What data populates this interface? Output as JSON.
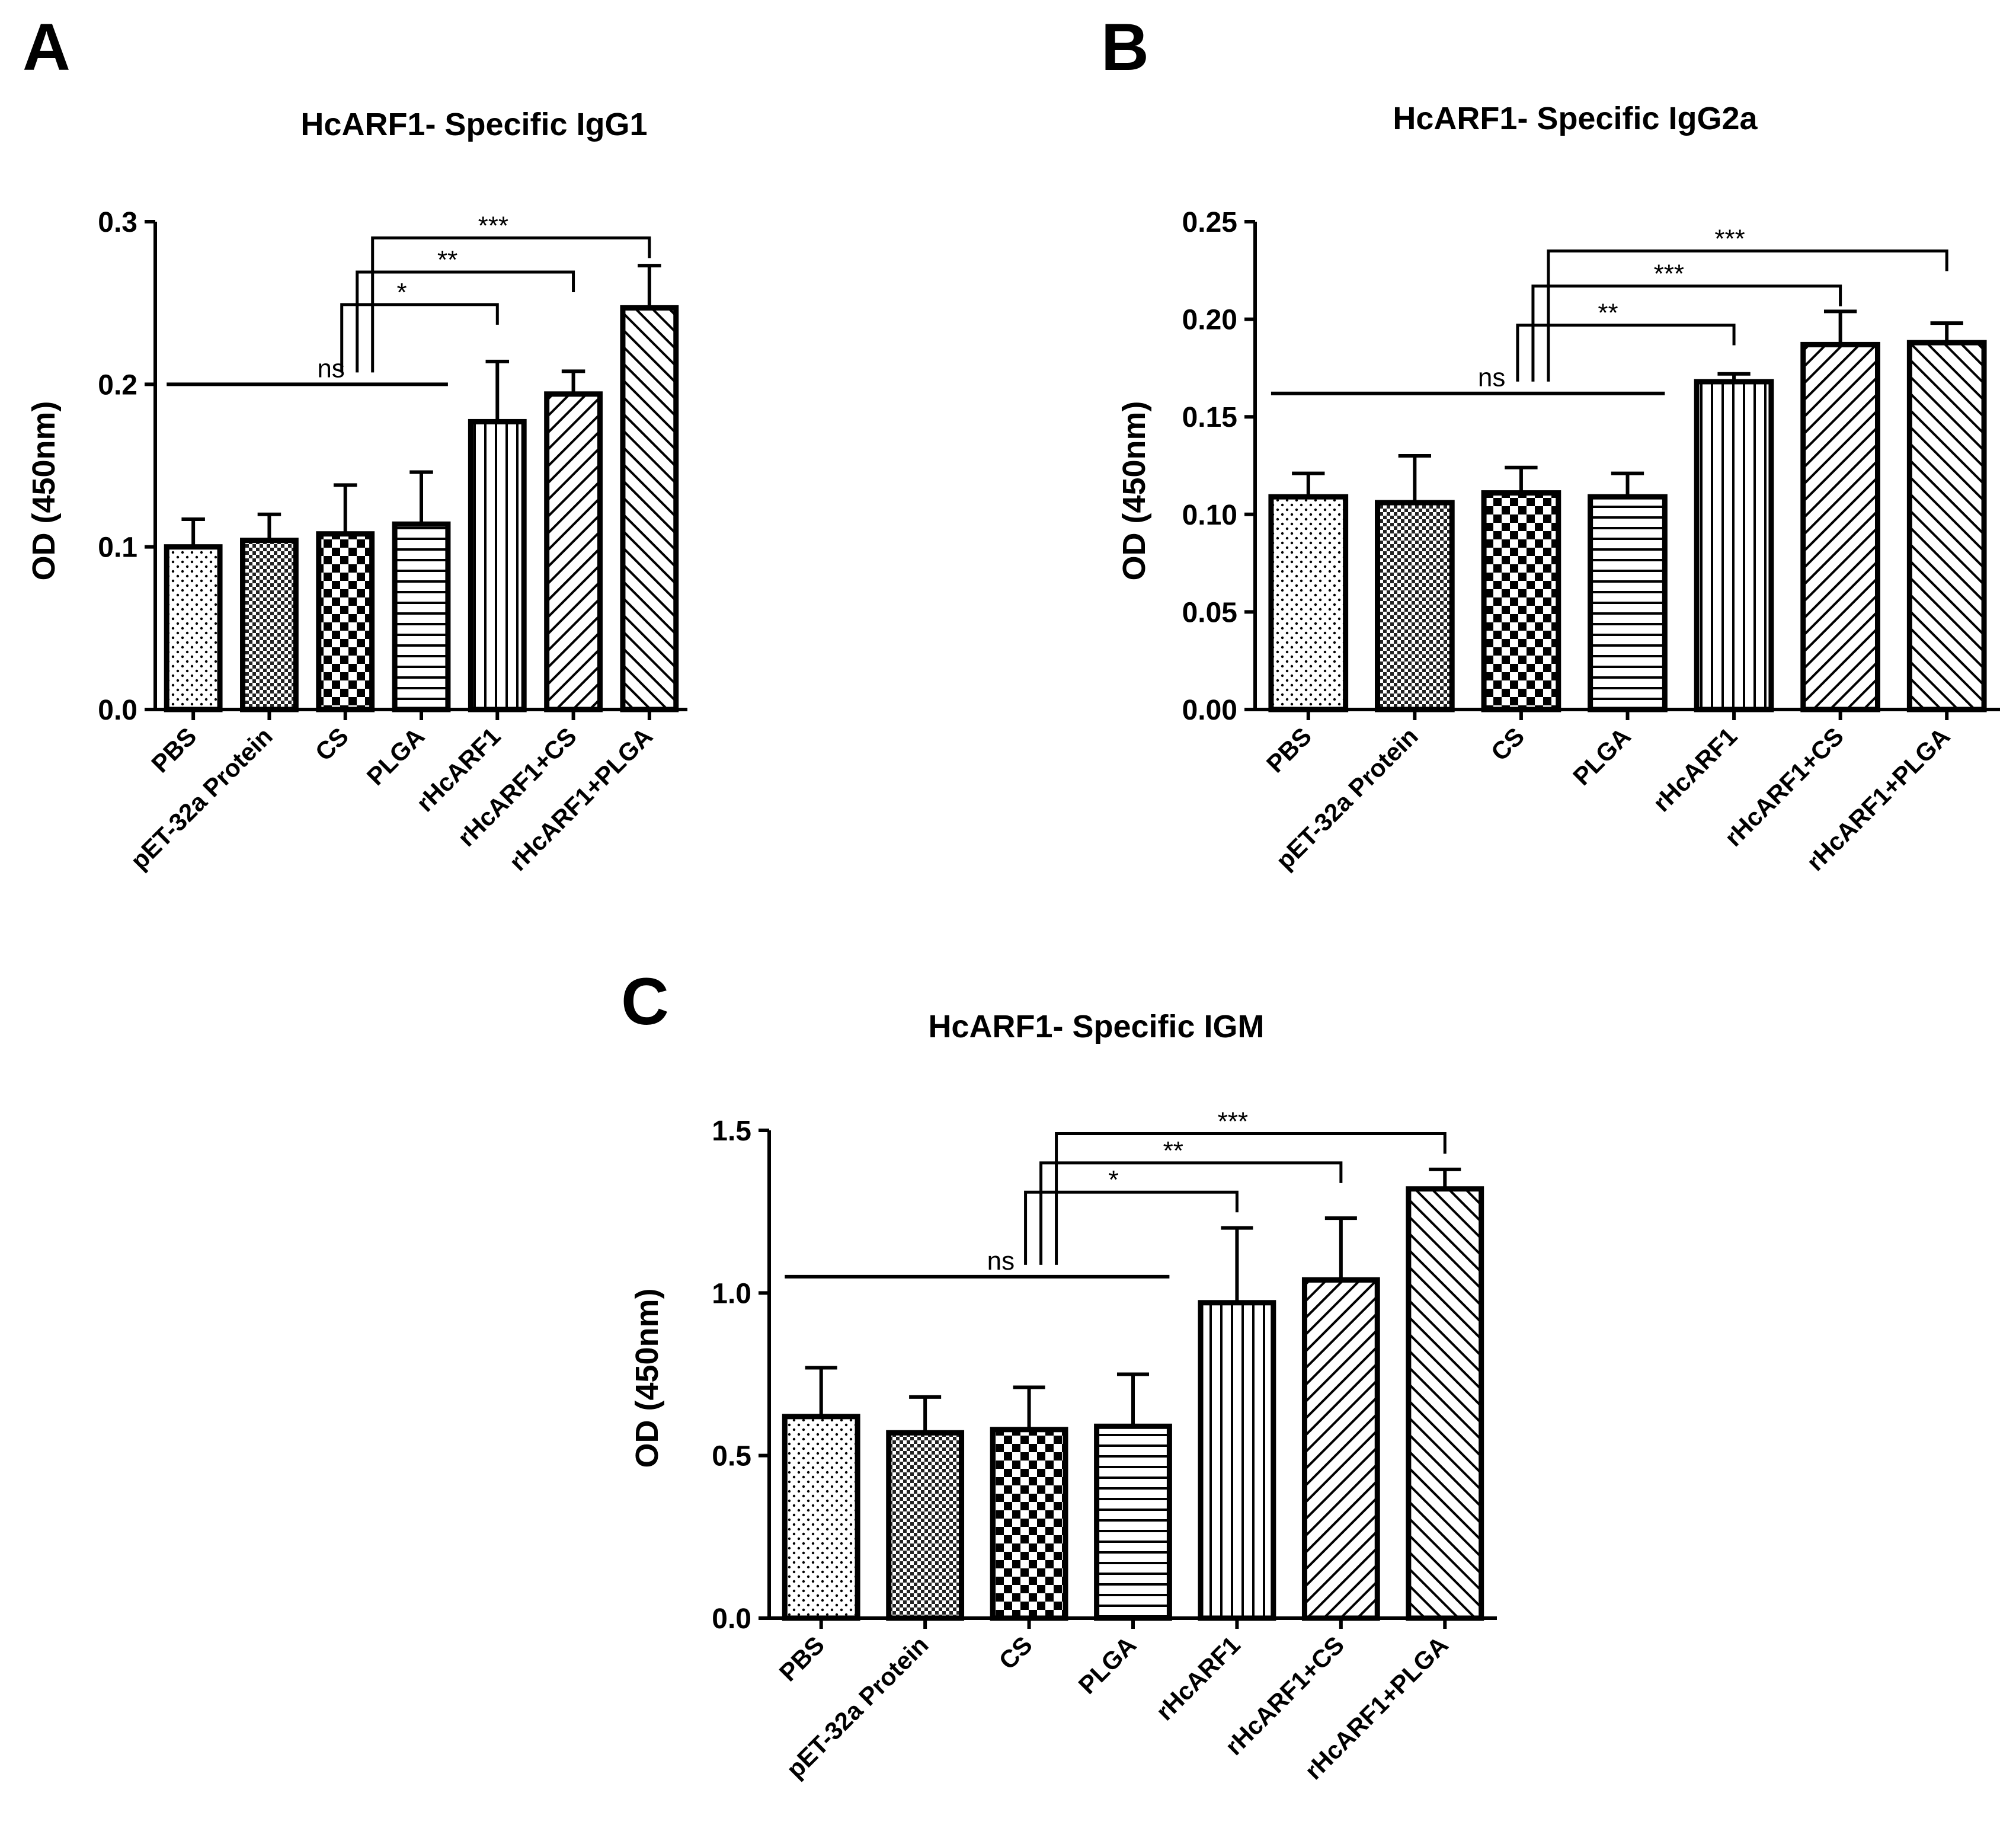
{
  "chart_data": [
    {
      "type": "bar",
      "panel": "A",
      "title": "HcARF1- Specific IgG1",
      "xlabel": "",
      "ylabel": "OD (450nm)",
      "ylim": [
        0,
        0.3
      ],
      "yticks": [
        0.0,
        0.1,
        0.2,
        0.3
      ],
      "ytick_labels": [
        "0.0",
        "0.1",
        "0.2",
        "0.3"
      ],
      "categories": [
        "PBS",
        "pET-32a Protein",
        "CS",
        "PLGA",
        "rHcARF1",
        "rHcARF1+CS",
        "rHcARF1+PLGA"
      ],
      "values": [
        0.1,
        0.104,
        0.108,
        0.114,
        0.177,
        0.194,
        0.247
      ],
      "errors": [
        0.017,
        0.016,
        0.03,
        0.032,
        0.037,
        0.014,
        0.026
      ],
      "significance": [
        {
          "label": "ns",
          "type": "line",
          "from": "PBS",
          "to": "PLGA",
          "y": 0.2
        },
        {
          "label": "*",
          "type": "bracket",
          "from": "CS",
          "to": "rHcARF1",
          "y": 0.249
        },
        {
          "label": "**",
          "type": "bracket",
          "from": "CS",
          "to": "rHcARF1+CS",
          "y": 0.269
        },
        {
          "label": "***",
          "type": "bracket",
          "from": "CS",
          "to": "rHcARF1+PLGA",
          "y": 0.29
        }
      ]
    },
    {
      "type": "bar",
      "panel": "B",
      "title": "HcARF1- Specific IgG2a",
      "xlabel": "",
      "ylabel": "OD (450nm)",
      "ylim": [
        0,
        0.25
      ],
      "yticks": [
        0.0,
        0.05,
        0.1,
        0.15,
        0.2,
        0.25
      ],
      "ytick_labels": [
        "0.00",
        "0.05",
        "0.10",
        "0.15",
        "0.20",
        "0.25"
      ],
      "categories": [
        "PBS",
        "pET-32a Protein",
        "CS",
        "PLGA",
        "rHcARF1",
        "rHcARF1+CS",
        "rHcARF1+PLGA"
      ],
      "values": [
        0.109,
        0.106,
        0.111,
        0.109,
        0.168,
        0.187,
        0.188
      ],
      "errors": [
        0.012,
        0.024,
        0.013,
        0.012,
        0.004,
        0.017,
        0.01
      ],
      "significance": [
        {
          "label": "ns",
          "type": "line",
          "from": "PBS",
          "to": "PLGA",
          "y": 0.162
        },
        {
          "label": "**",
          "type": "bracket",
          "from": "CS",
          "to": "rHcARF1",
          "y": 0.197
        },
        {
          "label": "***",
          "type": "bracket",
          "from": "CS",
          "to": "rHcARF1+CS",
          "y": 0.217
        },
        {
          "label": "***",
          "type": "bracket",
          "from": "CS",
          "to": "rHcARF1+PLGA",
          "y": 0.235
        }
      ]
    },
    {
      "type": "bar",
      "panel": "C",
      "title": "HcARF1- Specific IGM",
      "xlabel": "",
      "ylabel": "OD (450nm)",
      "ylim": [
        0,
        1.5
      ],
      "yticks": [
        0.0,
        0.5,
        1.0,
        1.5
      ],
      "ytick_labels": [
        "0.0",
        "0.5",
        "1.0",
        "1.5"
      ],
      "categories": [
        "PBS",
        "pET-32a Protein",
        "CS",
        "PLGA",
        "rHcARF1",
        "rHcARF1+CS",
        "rHcARF1+PLGA"
      ],
      "values": [
        0.62,
        0.57,
        0.58,
        0.59,
        0.97,
        1.04,
        1.32
      ],
      "errors": [
        0.15,
        0.11,
        0.13,
        0.16,
        0.23,
        0.19,
        0.06
      ],
      "significance": [
        {
          "label": "ns",
          "type": "line",
          "from": "PBS",
          "to": "PLGA",
          "y": 1.05
        },
        {
          "label": "*",
          "type": "bracket",
          "from": "CS",
          "to": "rHcARF1",
          "y": 1.31
        },
        {
          "label": "**",
          "type": "bracket",
          "from": "CS",
          "to": "rHcARF1+CS",
          "y": 1.4
        },
        {
          "label": "***",
          "type": "bracket",
          "from": "CS",
          "to": "rHcARF1+PLGA",
          "y": 1.49
        }
      ]
    }
  ],
  "bar_patterns": [
    "dots",
    "fine-check",
    "checker",
    "horizontal",
    "vertical",
    "diagonal",
    "diagonal-back"
  ],
  "colors": {
    "ink": "#000000",
    "background": "#ffffff"
  }
}
